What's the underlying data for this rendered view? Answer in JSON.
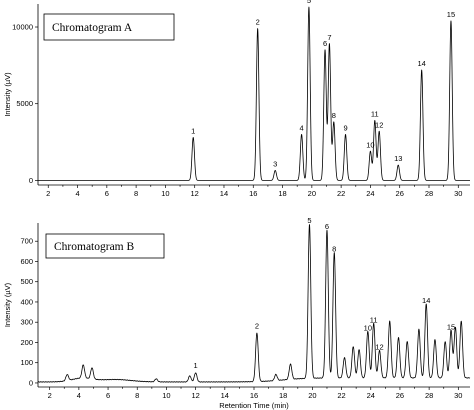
{
  "chart_data": [
    {
      "type": "line",
      "title": "Chromatogram A",
      "xlabel": "Retention Time (min)",
      "ylabel": "Intensity (µV)",
      "xlim": [
        1.3,
        30.8
      ],
      "ylim": [
        -300,
        11500
      ],
      "x_ticks": [
        2,
        4,
        6,
        8,
        10,
        12,
        14,
        16,
        18,
        20,
        22,
        24,
        26,
        28,
        30
      ],
      "y_ticks": [
        0,
        5000,
        10000
      ],
      "baseline": 0,
      "peaks": [
        {
          "label": "1",
          "x": 11.9,
          "y": 2800
        },
        {
          "label": "2",
          "x": 16.3,
          "y": 9900
        },
        {
          "label": "3",
          "x": 17.5,
          "y": 650
        },
        {
          "label": "4",
          "x": 19.3,
          "y": 3000
        },
        {
          "label": "5",
          "x": 19.8,
          "y": 11300
        },
        {
          "label": "6",
          "x": 20.9,
          "y": 8500
        },
        {
          "label": "7",
          "x": 21.2,
          "y": 8900
        },
        {
          "label": "8",
          "x": 21.5,
          "y": 3800
        },
        {
          "label": "9",
          "x": 22.3,
          "y": 3000
        },
        {
          "label": "10",
          "x": 24.0,
          "y": 1900
        },
        {
          "label": "11",
          "x": 24.3,
          "y": 3900
        },
        {
          "label": "12",
          "x": 24.6,
          "y": 3200
        },
        {
          "label": "13",
          "x": 25.9,
          "y": 1000
        },
        {
          "label": "14",
          "x": 27.5,
          "y": 7200
        },
        {
          "label": "15",
          "x": 29.5,
          "y": 10400
        }
      ]
    },
    {
      "type": "line",
      "title": "Chromatogram B",
      "xlabel": "Retention Time (min)",
      "ylabel": "Intensity (µV)",
      "xlim": [
        1.2,
        30.8
      ],
      "ylim": [
        -20,
        790
      ],
      "x_ticks": [
        2,
        4,
        6,
        8,
        10,
        12,
        14,
        16,
        18,
        20,
        22,
        24,
        26,
        28,
        30
      ],
      "y_ticks": [
        0,
        100,
        200,
        300,
        400,
        500,
        600,
        700
      ],
      "baseline": 10,
      "peaks": [
        {
          "label": "1",
          "x": 12.0,
          "y": 55
        },
        {
          "label": "2",
          "x": 16.2,
          "y": 250
        },
        {
          "label": "5",
          "x": 19.8,
          "y": 770
        },
        {
          "label": "6",
          "x": 21.0,
          "y": 740
        },
        {
          "label": "8",
          "x": 21.5,
          "y": 630
        },
        {
          "label": "10",
          "x": 23.8,
          "y": 240
        },
        {
          "label": "11",
          "x": 24.2,
          "y": 280
        },
        {
          "label": "12",
          "x": 24.6,
          "y": 145
        },
        {
          "label": "14",
          "x": 27.8,
          "y": 375
        },
        {
          "label": "15",
          "x": 29.5,
          "y": 245
        }
      ],
      "minor_peaks": [
        {
          "x": 3.2,
          "y": 40
        },
        {
          "x": 4.3,
          "y": 75
        },
        {
          "x": 4.9,
          "y": 65
        },
        {
          "x": 9.3,
          "y": 25
        },
        {
          "x": 11.6,
          "y": 40
        },
        {
          "x": 17.5,
          "y": 40
        },
        {
          "x": 18.5,
          "y": 85
        },
        {
          "x": 22.2,
          "y": 110
        },
        {
          "x": 22.8,
          "y": 165
        },
        {
          "x": 23.2,
          "y": 150
        },
        {
          "x": 25.3,
          "y": 290
        },
        {
          "x": 25.9,
          "y": 210
        },
        {
          "x": 26.5,
          "y": 190
        },
        {
          "x": 27.3,
          "y": 250
        },
        {
          "x": 28.4,
          "y": 200
        },
        {
          "x": 29.1,
          "y": 190
        },
        {
          "x": 29.8,
          "y": 260
        },
        {
          "x": 30.2,
          "y": 290
        }
      ]
    }
  ]
}
